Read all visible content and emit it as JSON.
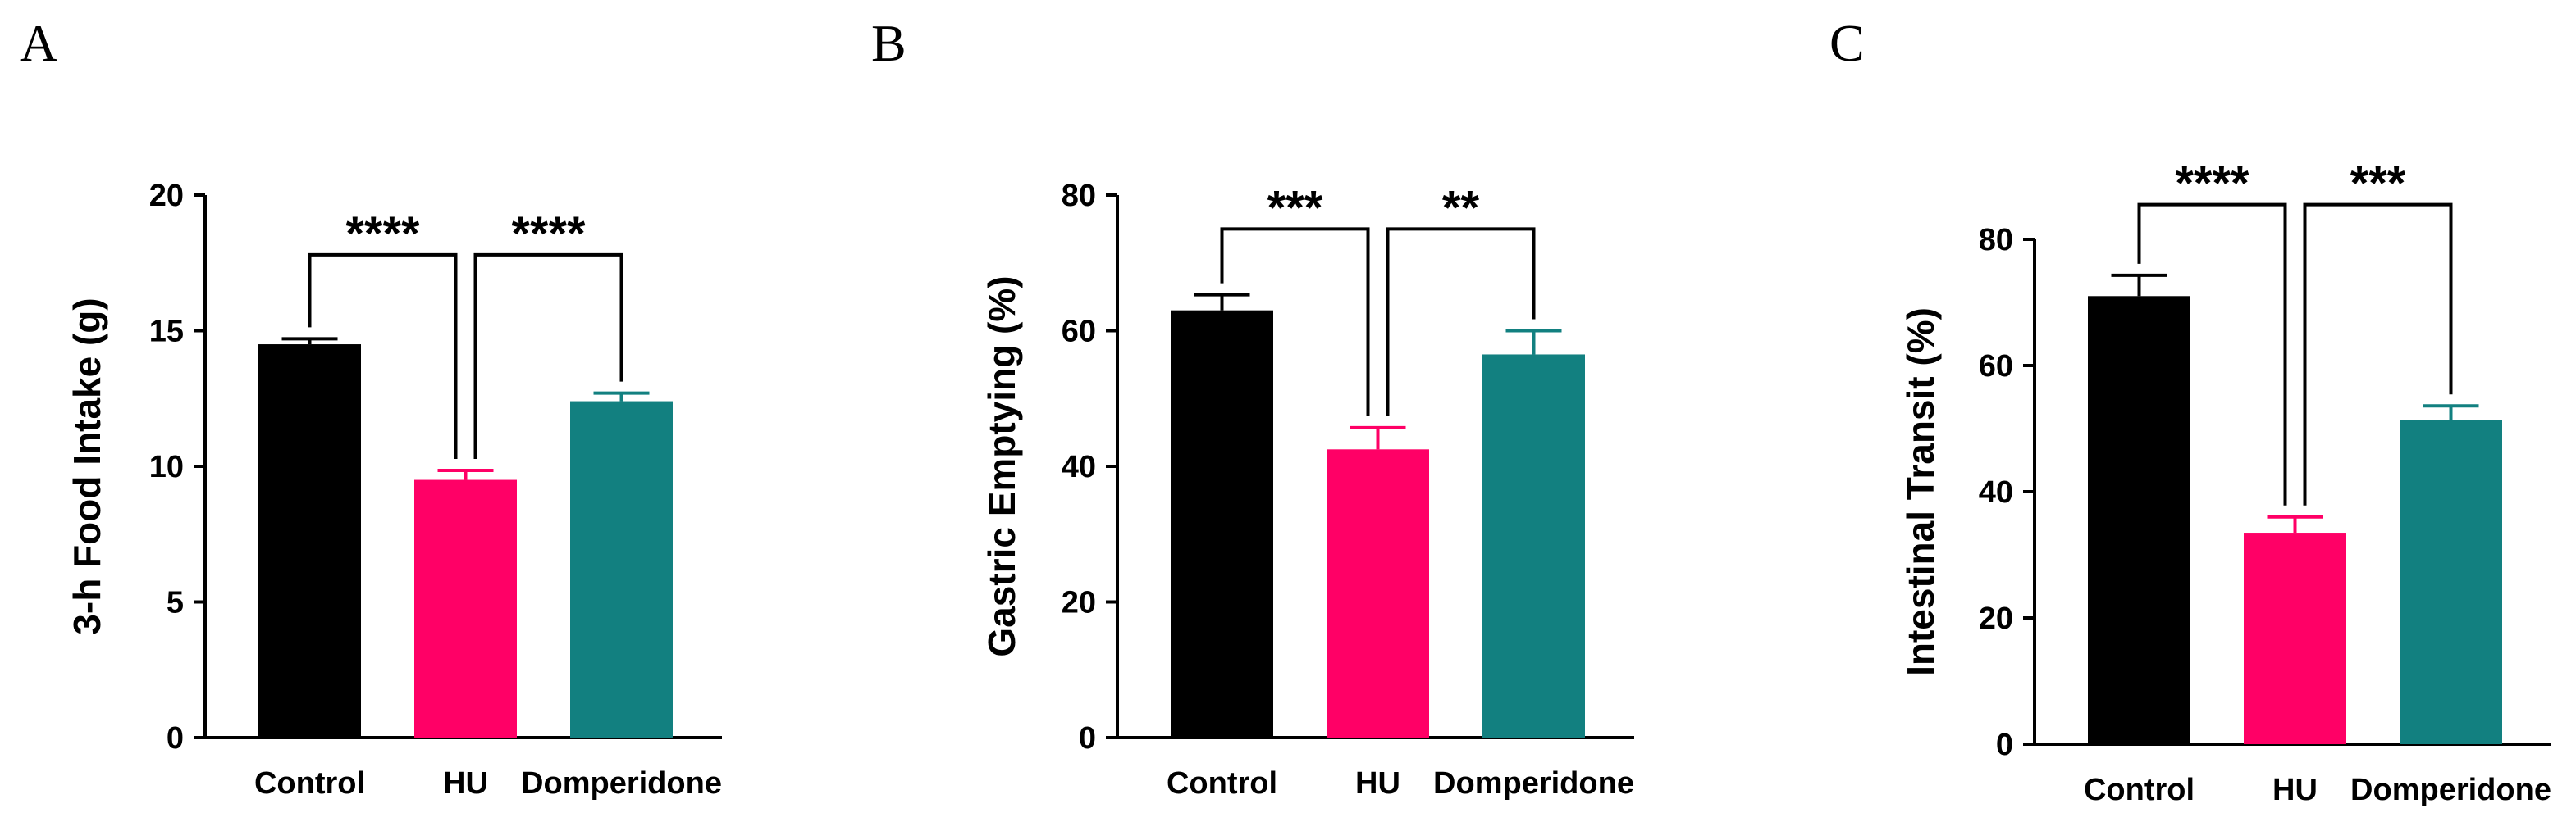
{
  "colors": {
    "Control": "#000000",
    "HU": "#ff0066",
    "Domperidone": "#128080"
  },
  "chart_data": [
    {
      "type": "bar",
      "panel": "A",
      "ylabel": "3-h Food Intake (g)",
      "categories": [
        "Control",
        "HU",
        "Domperidone"
      ],
      "values": [
        14.5,
        9.5,
        12.4
      ],
      "errors": [
        0.2,
        0.35,
        0.3
      ],
      "ylim": [
        0,
        20
      ],
      "yticks": [
        0,
        5,
        10,
        15,
        20
      ],
      "significance": [
        {
          "from": 0,
          "to": 1,
          "label": "****"
        },
        {
          "from": 1,
          "to": 2,
          "label": "****"
        }
      ],
      "bracket_level": 17.8
    },
    {
      "type": "bar",
      "panel": "B",
      "ylabel": "Gastric Emptying (%)",
      "categories": [
        "Control",
        "HU",
        "Domperidone"
      ],
      "values": [
        63,
        42.5,
        56.5
      ],
      "errors": [
        2.3,
        3.2,
        3.5
      ],
      "ylim": [
        0,
        80
      ],
      "yticks": [
        0,
        20,
        40,
        60,
        80
      ],
      "significance": [
        {
          "from": 0,
          "to": 1,
          "label": "***"
        },
        {
          "from": 1,
          "to": 2,
          "label": "**"
        }
      ],
      "bracket_level": 75
    },
    {
      "type": "bar",
      "panel": "C",
      "ylabel": "Intestinal Transit (%)",
      "categories": [
        "Control",
        "HU",
        "Domperidone"
      ],
      "values": [
        71,
        33.5,
        51.3
      ],
      "errors": [
        3.3,
        2.5,
        2.3
      ],
      "ylim": [
        0,
        80
      ],
      "yticks": [
        0,
        20,
        40,
        60,
        80
      ],
      "significance": [
        {
          "from": 0,
          "to": 1,
          "label": "****"
        },
        {
          "from": 1,
          "to": 2,
          "label": "***"
        }
      ],
      "bracket_level": 85.5
    }
  ]
}
